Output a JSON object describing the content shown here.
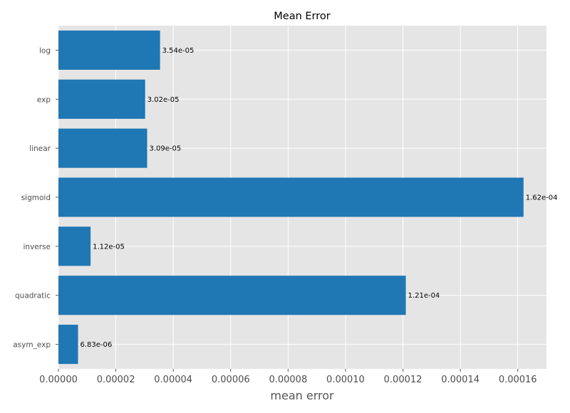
{
  "chart_data": {
    "type": "bar",
    "orientation": "horizontal",
    "title": "Mean Error",
    "xlabel": "mean error",
    "ylabel": "",
    "categories": [
      "log",
      "exp",
      "linear",
      "sigmoid",
      "inverse",
      "quadratic",
      "asym_exp"
    ],
    "values": [
      3.54e-05,
      3.02e-05,
      3.09e-05,
      0.000162,
      1.12e-05,
      0.000121,
      6.83e-06
    ],
    "data_labels": [
      "3.54e-05",
      "3.02e-05",
      "3.09e-05",
      "1.62e-04",
      "1.12e-05",
      "1.21e-04",
      "6.83e-06"
    ],
    "xlim": [
      0,
      0.00017
    ],
    "x_ticks": [
      0,
      2e-05,
      4e-05,
      6e-05,
      8e-05,
      0.0001,
      0.00012,
      0.00014,
      0.00016
    ],
    "x_tick_labels": [
      "0.00000",
      "0.00002",
      "0.00004",
      "0.00006",
      "0.00008",
      "0.00010",
      "0.00012",
      "0.00014",
      "0.00016"
    ],
    "grid": true,
    "colors": {
      "bar": "#1f77b4",
      "plot_bg": "#e5e5e5",
      "grid": "#ffffff"
    }
  }
}
